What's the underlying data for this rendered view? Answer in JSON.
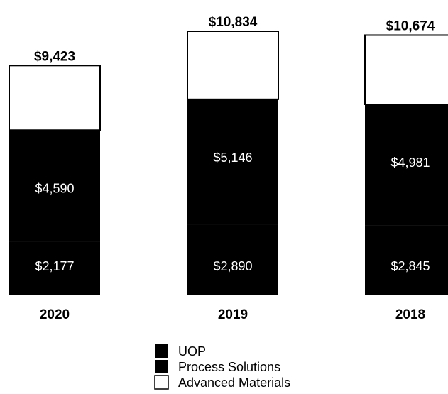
{
  "chart_data": {
    "type": "bar",
    "stacked": true,
    "categories": [
      "2020",
      "2019",
      "2018"
    ],
    "totals": [
      "$9,423",
      "$10,834",
      "$10,674"
    ],
    "total_values": [
      9423,
      10834,
      10674
    ],
    "series": [
      {
        "name": "UOP",
        "values": [
          2177,
          2890,
          2845
        ],
        "labels": [
          "$2,177",
          "$2,890",
          "$2,845"
        ],
        "color": "#000000"
      },
      {
        "name": "Process Solutions",
        "values": [
          4590,
          5146,
          4981
        ],
        "labels": [
          "$4,590",
          "$5,146",
          "$4,981"
        ],
        "color": "#000000"
      },
      {
        "name": "Advanced Materials",
        "values": [
          2656,
          2798,
          2848
        ],
        "labels": [
          "",
          "",
          ""
        ],
        "color": "#ffffff"
      }
    ],
    "legend_position": "bottom-center",
    "title": "",
    "xlabel": "",
    "ylabel": "",
    "ylim": [
      0,
      10834
    ],
    "grid": false
  }
}
